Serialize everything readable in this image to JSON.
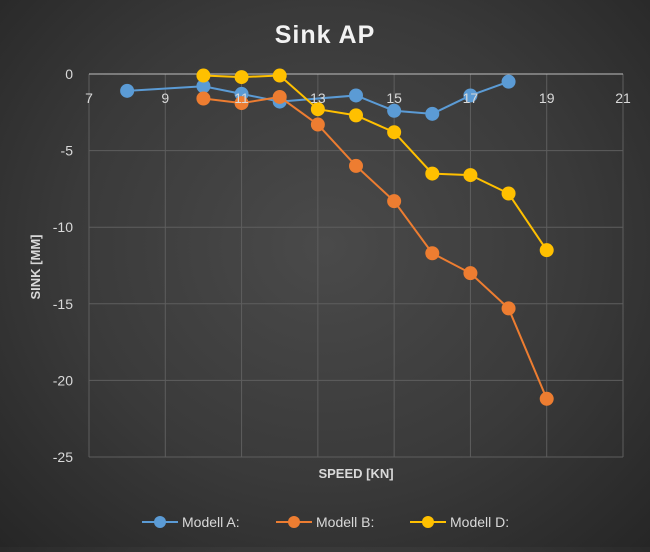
{
  "chart_data": {
    "type": "scatter",
    "title": "Sink AP",
    "xlabel": "SPEED [KN]",
    "ylabel": "SINK [MM]",
    "xlim": [
      7,
      21
    ],
    "ylim": [
      -25,
      0
    ],
    "x_ticks": [
      7,
      9,
      11,
      13,
      15,
      17,
      19,
      21
    ],
    "y_ticks": [
      0,
      -5,
      -10,
      -15,
      -20,
      -25
    ],
    "grid": true,
    "legend_position": "bottom",
    "series": [
      {
        "name": "Modell A:",
        "color": "#5b9bd5",
        "points": [
          [
            8,
            -1.1
          ],
          [
            10,
            -0.8
          ],
          [
            11,
            -1.3
          ],
          [
            12,
            -1.8
          ],
          [
            14,
            -1.4
          ],
          [
            15,
            -2.4
          ],
          [
            16,
            -2.6
          ],
          [
            17,
            -1.4
          ],
          [
            18,
            -0.5
          ]
        ]
      },
      {
        "name": "Modell B:",
        "color": "#ed7d31",
        "points": [
          [
            10,
            -1.6
          ],
          [
            11,
            -1.9
          ],
          [
            12,
            -1.5
          ],
          [
            13,
            -3.3
          ],
          [
            14,
            -6.0
          ],
          [
            15,
            -8.3
          ],
          [
            16,
            -11.7
          ],
          [
            17,
            -13.0
          ],
          [
            18,
            -15.3
          ],
          [
            19,
            -21.2
          ]
        ]
      },
      {
        "name": "Modell D:",
        "color": "#ffc000",
        "points": [
          [
            10,
            -0.1
          ],
          [
            11,
            -0.2
          ],
          [
            12,
            -0.1
          ],
          [
            13,
            -2.3
          ],
          [
            14,
            -2.7
          ],
          [
            15,
            -3.8
          ],
          [
            16,
            -6.5
          ],
          [
            17,
            -6.6
          ],
          [
            18,
            -7.8
          ],
          [
            19,
            -11.5
          ]
        ]
      }
    ]
  }
}
